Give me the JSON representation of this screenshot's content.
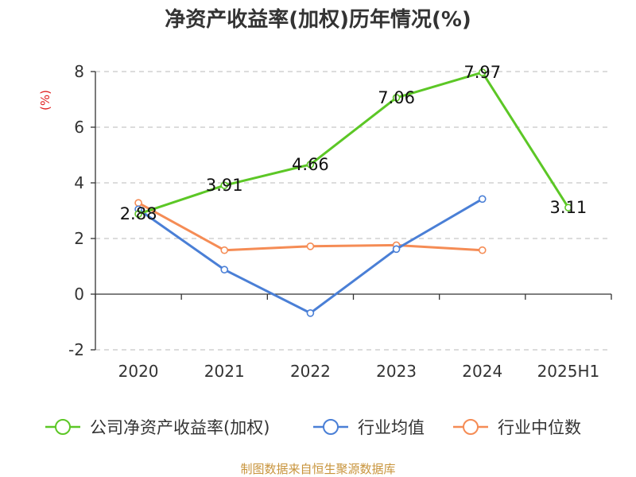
{
  "chart_data": {
    "type": "line",
    "title": "净资产收益率(加权)历年情况(%)",
    "ylabel": "(%)",
    "categories": [
      "2020",
      "2021",
      "2022",
      "2023",
      "2024",
      "2025H1"
    ],
    "ylim": [
      -2,
      8
    ],
    "yticks": [
      "-2",
      "0",
      "2",
      "4",
      "6",
      "8"
    ],
    "grid": true,
    "legend_position": "bottom",
    "series": [
      {
        "name": "公司净资产收益率(加权)",
        "color": "#5cc726",
        "values": [
          2.88,
          3.91,
          4.66,
          7.06,
          7.97,
          3.11
        ],
        "labels": [
          "2.88",
          "3.91",
          "4.66",
          "7.06",
          "7.97",
          "3.11"
        ]
      },
      {
        "name": "行业均值",
        "color": "#4a7fd6",
        "values": [
          3.05,
          0.88,
          -0.68,
          1.62,
          3.42,
          null
        ]
      },
      {
        "name": "行业中位数",
        "color": "#f58c55",
        "values": [
          3.28,
          1.58,
          1.72,
          1.76,
          1.58,
          null
        ]
      }
    ]
  },
  "footer": {
    "source": "制图数据来自恒生聚源数据库",
    "source_color": "#c8943c"
  },
  "colors": {
    "unit": "#e02020"
  }
}
